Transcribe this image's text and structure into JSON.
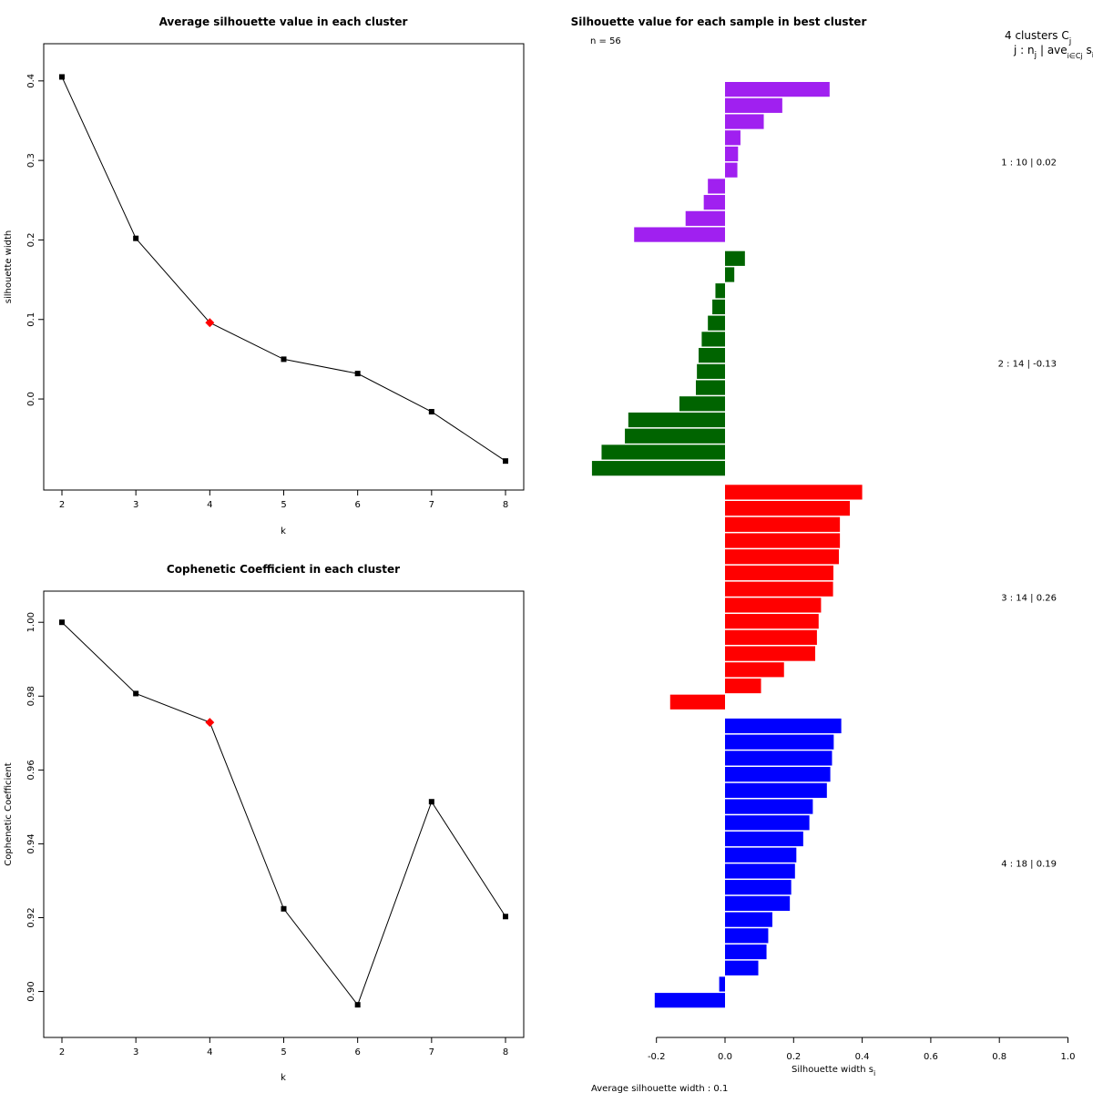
{
  "chart_data": [
    {
      "type": "line",
      "title": "Average silhouette value in each cluster",
      "xlabel": "k",
      "ylabel": "silhouette width",
      "x": [
        2,
        3,
        4,
        5,
        6,
        7,
        8
      ],
      "y": [
        0.405,
        0.202,
        0.096,
        0.05,
        0.032,
        -0.016,
        -0.078
      ],
      "highlight_k": 4,
      "xticks": [
        "2",
        "3",
        "4",
        "5",
        "6",
        "7",
        "8"
      ],
      "yticks": [
        "0.0",
        "0.1",
        "0.2",
        "0.3",
        "0.4"
      ],
      "ylim": [
        -0.095,
        0.425
      ],
      "marker_color": "#000000",
      "highlight_color": "#ff0000"
    },
    {
      "type": "line",
      "title": "Cophenetic Coefficient in each cluster",
      "xlabel": "k",
      "ylabel": "Cophenetic Coefficient",
      "x": [
        2,
        3,
        4,
        5,
        6,
        7,
        8
      ],
      "y": [
        1.0,
        0.9807,
        0.9729,
        0.9224,
        0.8964,
        0.9514,
        0.9203
      ],
      "highlight_k": 4,
      "xticks": [
        "2",
        "3",
        "4",
        "5",
        "6",
        "7",
        "8"
      ],
      "yticks": [
        "0.90",
        "0.92",
        "0.94",
        "0.96",
        "0.98",
        "1.00"
      ],
      "ylim": [
        0.892,
        1.004
      ],
      "marker_color": "#000000",
      "highlight_color": "#ff0000"
    },
    {
      "type": "bar",
      "orientation": "horizontal",
      "title": "Silhouette value for each sample in best cluster",
      "n_label": "n = 56",
      "header_line1": "4 clusters  C",
      "header_sub1": "j",
      "header_line2": "j :  n",
      "header_sub2": "j",
      "header_rest": " | ave",
      "header_sub3": "i∈Cj",
      "header_s": " s",
      "header_sub4": "i",
      "xlabel": "Silhouette width  s",
      "xlabel_sub": "i",
      "xlim": [
        -0.2,
        1.0
      ],
      "xticks": [
        "-0.2",
        "0.0",
        "0.2",
        "0.4",
        "0.6",
        "0.8",
        "1.0"
      ],
      "footer": "Average silhouette width :  0.1",
      "clusters": [
        {
          "label": "1 :   10  |  0.02",
          "color": "#a020f0",
          "values": [
            0.305,
            0.167,
            0.113,
            0.045,
            0.038,
            0.036,
            -0.05,
            -0.062,
            -0.115,
            -0.265
          ]
        },
        {
          "label": "2 :   14  |  -0.13",
          "color": "#006400",
          "values": [
            0.058,
            0.027,
            -0.028,
            -0.037,
            -0.05,
            -0.068,
            -0.077,
            -0.082,
            -0.085,
            -0.133,
            -0.282,
            -0.292,
            -0.36,
            -0.388
          ]
        },
        {
          "label": "3 :   14  |  0.26",
          "color": "#ff0000",
          "values": [
            0.4,
            0.364,
            0.335,
            0.335,
            0.332,
            0.316,
            0.315,
            0.28,
            0.273,
            0.268,
            0.263,
            0.172,
            0.105,
            -0.16
          ]
        },
        {
          "label": "4 :   18  |  0.19",
          "color": "#0000ff",
          "values": [
            0.339,
            0.317,
            0.312,
            0.307,
            0.297,
            0.256,
            0.246,
            0.228,
            0.208,
            0.204,
            0.193,
            0.189,
            0.138,
            0.126,
            0.121,
            0.097,
            -0.017,
            -0.205
          ]
        }
      ]
    }
  ]
}
